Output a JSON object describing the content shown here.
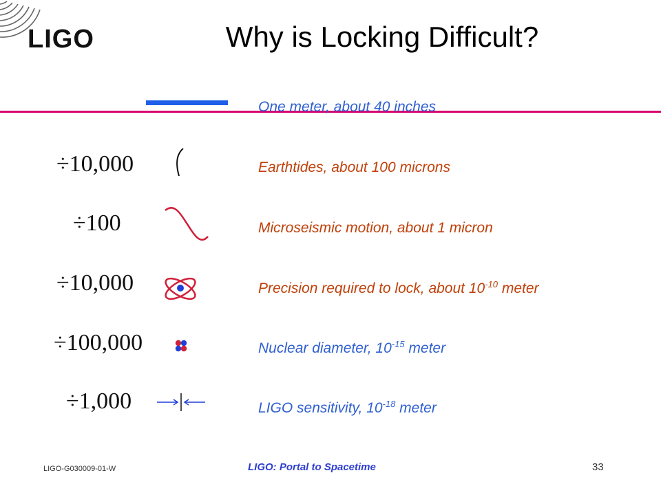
{
  "logo": {
    "text": "LIGO",
    "icon": "ligo-wave-arcs"
  },
  "title": "Why is Locking Difficult?",
  "colors": {
    "rule": "#d6006d",
    "blue_text": "#2f5fd0",
    "rust_text": "#c0400a",
    "meter_bar": "#1f5ee8",
    "drawing": "#d0203a"
  },
  "rows": [
    {
      "divisor": "",
      "description": "One meter, about 40 inches",
      "sup": "",
      "suffix": "",
      "icon": "meter-bar"
    },
    {
      "divisor": "÷10,000",
      "description": "Earthtides, about 100 microns",
      "sup": "",
      "suffix": "",
      "icon": "small-arc"
    },
    {
      "divisor": "÷100",
      "description": "Microseismic motion, about 1 micron",
      "sup": "",
      "suffix": "",
      "icon": "sine-wave"
    },
    {
      "divisor": "÷10,000",
      "description": "Precision required to lock, about 10",
      "sup": "-10",
      "suffix": " meter",
      "icon": "atom"
    },
    {
      "divisor": "÷100,000",
      "description": "Nuclear diameter, 10",
      "sup": "-15",
      "suffix": " meter",
      "icon": "nucleus"
    },
    {
      "divisor": "÷1,000",
      "description": "LIGO sensitivity, 10",
      "sup": "-18",
      "suffix": " meter",
      "icon": "converging-arrows"
    }
  ],
  "footer": {
    "doc_id": "LIGO-G030009-01-W",
    "title": "LIGO: Portal to Spacetime",
    "page": "33"
  }
}
